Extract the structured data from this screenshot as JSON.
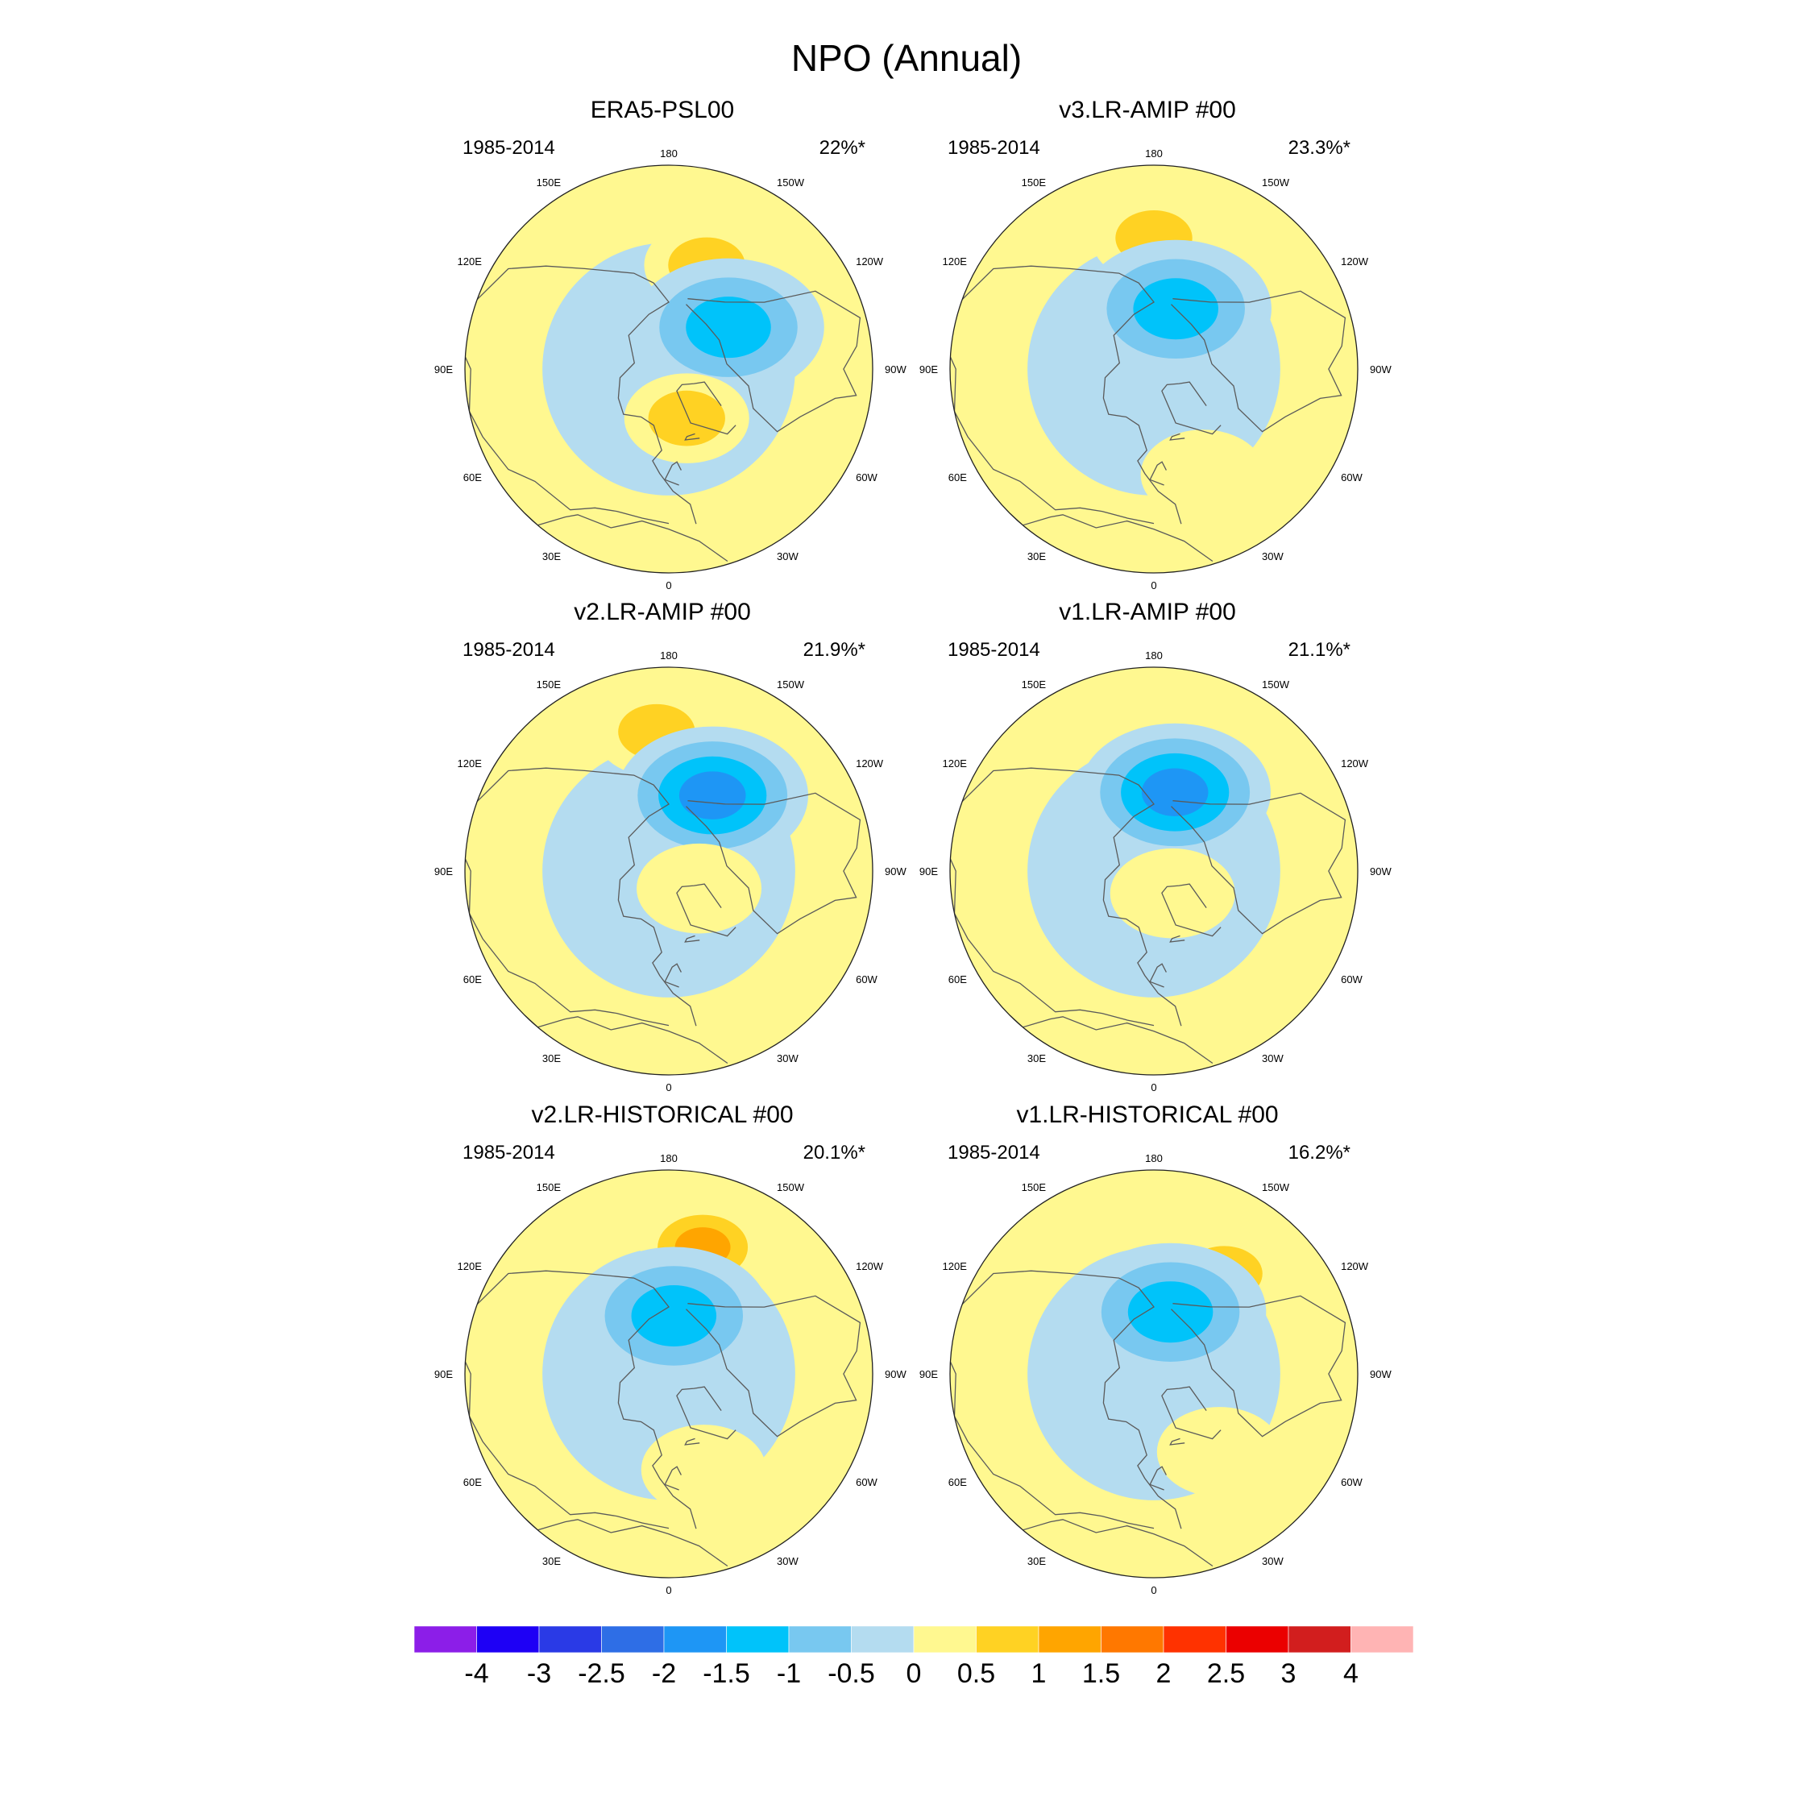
{
  "chart_data": {
    "type": "heatmap",
    "title": "NPO (Annual)",
    "projection": "north-polar-stereographic",
    "longitude_labels": [
      "180",
      "150E",
      "120E",
      "90E",
      "60E",
      "30E",
      "0",
      "30W",
      "60W",
      "90W",
      "120W",
      "150W"
    ],
    "colorbar": {
      "levels": [
        "-4",
        "-3",
        "-2.5",
        "-2",
        "-1.5",
        "-1",
        "-0.5",
        "0",
        "0.5",
        "1",
        "1.5",
        "2",
        "2.5",
        "3",
        "4"
      ],
      "colors": [
        "#8c1ee8",
        "#1e00f5",
        "#2a3ae6",
        "#2e6ee6",
        "#1e96f5",
        "#00c3fa",
        "#78c8f0",
        "#b4dcf0",
        "#fff890",
        "#ffd223",
        "#ffa500",
        "#ff7800",
        "#ff3200",
        "#eb0000",
        "#d21e1e",
        "#ffb4b4"
      ]
    },
    "panels": [
      {
        "title": "ERA5-PSL00",
        "period": "1985-2014",
        "variance": "22%*",
        "features": [
          {
            "kind": "high",
            "value": 1.2,
            "lon": 200,
            "lat": 52
          },
          {
            "kind": "low",
            "value": -1.6,
            "lon": 235,
            "lat": 65
          },
          {
            "kind": "high",
            "value": 0.8,
            "lon": 340,
            "lat": 72
          }
        ]
      },
      {
        "title": "v3.LR-AMIP  #00",
        "period": "1985-2014",
        "variance": "23.3%*",
        "features": [
          {
            "kind": "high",
            "value": 1.0,
            "lon": 180,
            "lat": 45
          },
          {
            "kind": "low",
            "value": -1.7,
            "lon": 200,
            "lat": 68
          },
          {
            "kind": "high",
            "value": 0.7,
            "lon": 335,
            "lat": 50
          }
        ]
      },
      {
        "title": "v2.LR-AMIP  #00",
        "period": "1985-2014",
        "variance": "21.9%*",
        "features": [
          {
            "kind": "high",
            "value": 0.9,
            "lon": 175,
            "lat": 42
          },
          {
            "kind": "low",
            "value": -2.2,
            "lon": 210,
            "lat": 60
          },
          {
            "kind": "high",
            "value": 0.4,
            "lon": 300,
            "lat": 78
          }
        ]
      },
      {
        "title": "v1.LR-AMIP  #00",
        "period": "1985-2014",
        "variance": "21.1%*",
        "features": [
          {
            "kind": "high",
            "value": 0.6,
            "lon": 180,
            "lat": 35
          },
          {
            "kind": "low",
            "value": -2.1,
            "lon": 195,
            "lat": 62
          },
          {
            "kind": "high",
            "value": 0.3,
            "lon": 320,
            "lat": 80
          }
        ]
      },
      {
        "title": "v2.LR-HISTORICAL  #00",
        "period": "1985-2014",
        "variance": "20.1%*",
        "features": [
          {
            "kind": "high",
            "value": 1.3,
            "lon": 195,
            "lat": 45
          },
          {
            "kind": "low",
            "value": -1.6,
            "lon": 185,
            "lat": 70
          },
          {
            "kind": "high",
            "value": 0.4,
            "lon": 340,
            "lat": 55
          }
        ]
      },
      {
        "title": "v1.LR-HISTORICAL  #00",
        "period": "1985-2014",
        "variance": "16.2%*",
        "features": [
          {
            "kind": "high",
            "value": 0.9,
            "lon": 215,
            "lat": 48
          },
          {
            "kind": "low",
            "value": -1.6,
            "lon": 195,
            "lat": 68
          },
          {
            "kind": "high",
            "value": 0.4,
            "lon": 320,
            "lat": 55
          }
        ]
      }
    ]
  }
}
